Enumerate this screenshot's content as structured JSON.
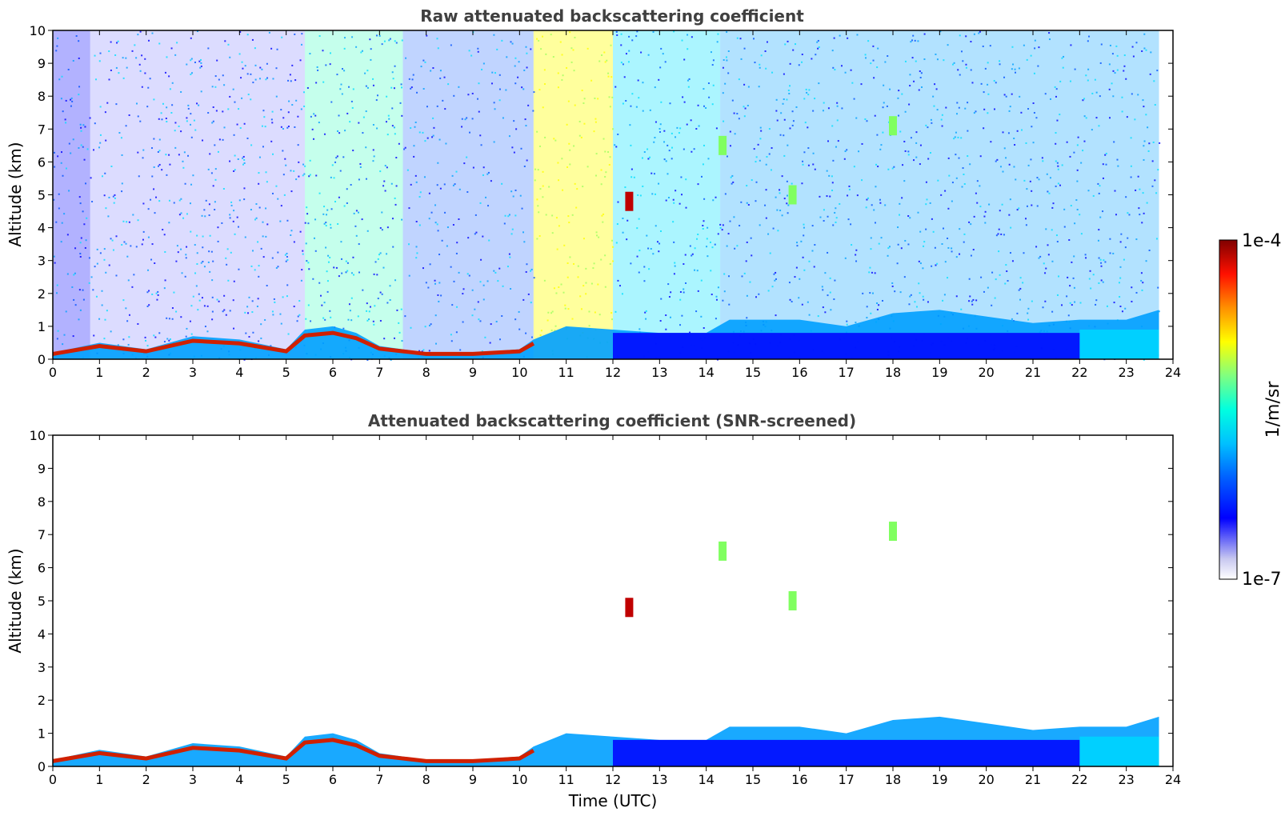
{
  "chart_data": [
    {
      "type": "heatmap",
      "title": "Raw attenuated backscattering coefficient",
      "xlabel": "",
      "ylabel": "Altitude (km)",
      "xlim": [
        0,
        24
      ],
      "ylim": [
        0,
        10
      ],
      "xticks": [
        0,
        1,
        2,
        3,
        4,
        5,
        6,
        7,
        8,
        9,
        10,
        11,
        12,
        13,
        14,
        15,
        16,
        17,
        18,
        19,
        20,
        21,
        22,
        23,
        24
      ],
      "yticks": [
        0,
        1,
        2,
        3,
        4,
        5,
        6,
        7,
        8,
        9,
        10
      ],
      "data_end_time": 23.7,
      "boundary_layer": {
        "x": [
          0,
          1,
          2,
          3,
          4,
          5,
          5.4,
          6,
          6.5,
          7,
          7.5,
          8,
          9,
          10,
          10.3,
          11,
          12,
          13,
          14,
          14.5,
          15,
          16,
          17,
          18,
          19,
          20,
          21,
          22,
          23,
          23.7
        ],
        "top_km": [
          0.2,
          0.5,
          0.3,
          0.7,
          0.6,
          0.3,
          0.9,
          1.0,
          0.8,
          0.4,
          0.3,
          0.2,
          0.2,
          0.3,
          0.6,
          1.0,
          0.9,
          0.8,
          0.8,
          1.2,
          1.2,
          1.2,
          1.0,
          1.4,
          1.5,
          1.3,
          1.1,
          1.2,
          1.2,
          1.5
        ]
      },
      "features": [
        {
          "x": 12.35,
          "altitude_km": 4.8,
          "level": "high"
        },
        {
          "x": 15.85,
          "altitude_km": 5.0,
          "level": "mid"
        },
        {
          "x": 18.0,
          "altitude_km": 7.1,
          "level": "mid"
        },
        {
          "x": 14.35,
          "altitude_km": 6.5,
          "level": "mid"
        }
      ]
    },
    {
      "type": "heatmap",
      "title": "Attenuated backscattering coefficient (SNR-screened)",
      "xlabel": "Time (UTC)",
      "ylabel": "Altitude (km)",
      "xlim": [
        0,
        24
      ],
      "ylim": [
        0,
        10
      ],
      "xticks": [
        0,
        1,
        2,
        3,
        4,
        5,
        6,
        7,
        8,
        9,
        10,
        11,
        12,
        13,
        14,
        15,
        16,
        17,
        18,
        19,
        20,
        21,
        22,
        23,
        24
      ],
      "yticks": [
        0,
        1,
        2,
        3,
        4,
        5,
        6,
        7,
        8,
        9,
        10
      ],
      "data_end_time": 23.7,
      "features": [
        {
          "x": 12.35,
          "altitude_km": 4.8,
          "level": "high"
        },
        {
          "x": 15.85,
          "altitude_km": 5.0,
          "level": "mid"
        },
        {
          "x": 18.0,
          "altitude_km": 7.1,
          "level": "mid"
        },
        {
          "x": 14.35,
          "altitude_km": 6.5,
          "level": "mid"
        }
      ]
    }
  ],
  "colorbar": {
    "label": "1/m/sr",
    "max_label": "1e-4",
    "min_label": "1e-7",
    "scale": "log",
    "colormap": "jet",
    "stops": [
      "#ffffff",
      "#c8c8f0",
      "#0000ff",
      "#00a0ff",
      "#00ffff",
      "#80ff80",
      "#ffff00",
      "#ff8000",
      "#ff0000",
      "#800000"
    ]
  }
}
